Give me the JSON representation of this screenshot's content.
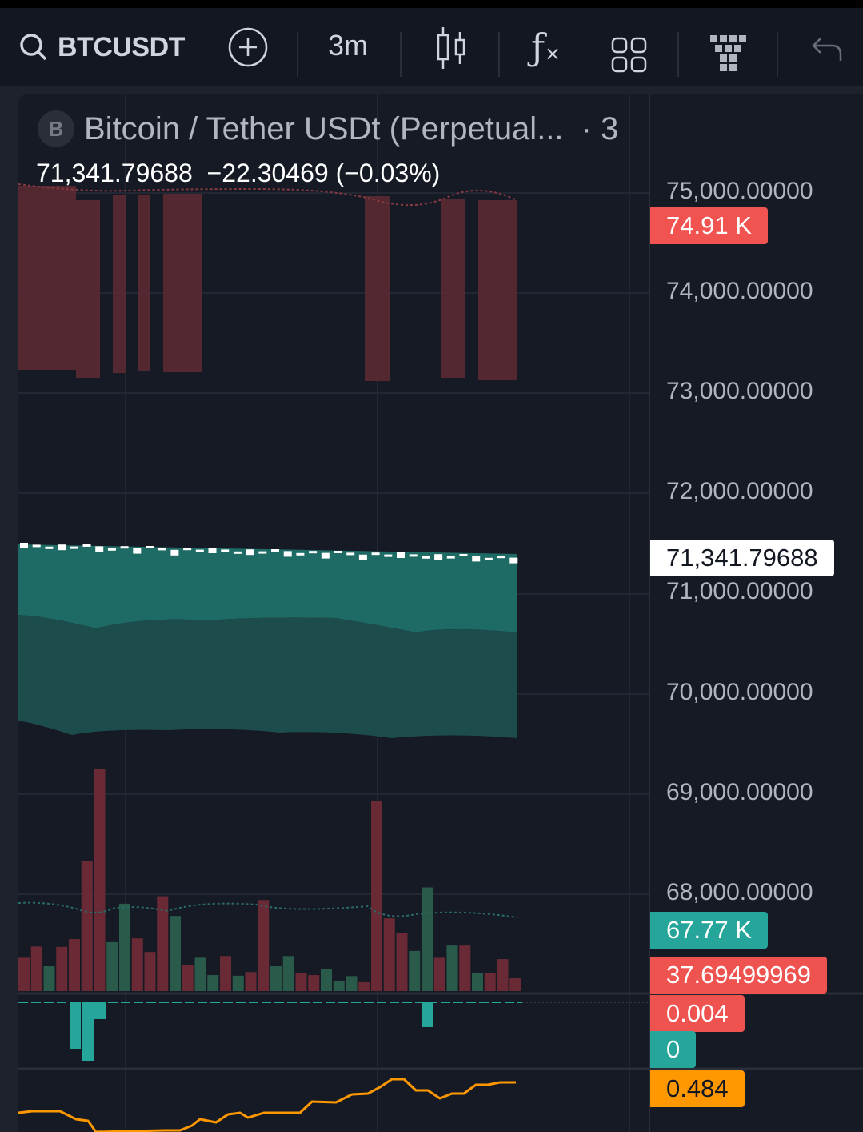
{
  "toolbar": {
    "symbol": "BTCUSDT",
    "timeframe": "3m",
    "icons": [
      "search-icon",
      "add-circle-icon",
      "candlestick-icon",
      "indicators-fx-icon",
      "layout-grid-icon",
      "templates-icon",
      "undo-icon"
    ]
  },
  "legend": {
    "logo_letter": "B",
    "title": "Bitcoin / Tether USDt (Perpetual...",
    "interval": "· 3",
    "price": "71,341.79688",
    "change": "−22.30469 (−0.03%)"
  },
  "price_axis": {
    "labels": [
      "75,000.00000",
      "74,000.00000",
      "73,000.00000",
      "72,000.00000",
      "71,000.00000",
      "70,000.00000",
      "69,000.00000",
      "68,000.00000"
    ]
  },
  "tags": [
    {
      "text": "74.91 K",
      "color": "#f05350"
    },
    {
      "text": "71,341.79688",
      "color": "#ffffff"
    },
    {
      "text": "67.77 K",
      "color": "#26a69a"
    },
    {
      "text": "37.69499969",
      "color": "#ef5350"
    },
    {
      "text": "0.004",
      "color": "#ef5350"
    },
    {
      "text": "0",
      "color": "#26a69a"
    },
    {
      "text": "0.484",
      "color": "#ff9800"
    }
  ],
  "colors": {
    "up": "#26a69a",
    "down": "#ef5350",
    "osc": "#ff9800",
    "bg": "#161a25"
  },
  "volume": {
    "values": [
      98,
      131,
      73,
      130,
      153,
      383,
      654,
      144,
      257,
      155,
      115,
      279,
      221,
      77,
      98,
      47,
      103,
      45,
      56,
      268,
      73,
      103,
      53,
      47,
      65,
      30,
      44,
      26,
      560,
      214,
      171,
      118,
      305,
      98,
      134,
      134,
      53,
      53,
      94,
      37.69
    ],
    "direction": [
      "d",
      "d",
      "u",
      "d",
      "d",
      "d",
      "d",
      "u",
      "u",
      "d",
      "d",
      "d",
      "u",
      "d",
      "u",
      "u",
      "d",
      "u",
      "d",
      "d",
      "u",
      "u",
      "d",
      "d",
      "u",
      "u",
      "u",
      "d",
      "d",
      "d",
      "d",
      "u",
      "u",
      "d",
      "u",
      "d",
      "u",
      "d",
      "d",
      "d"
    ]
  }
}
